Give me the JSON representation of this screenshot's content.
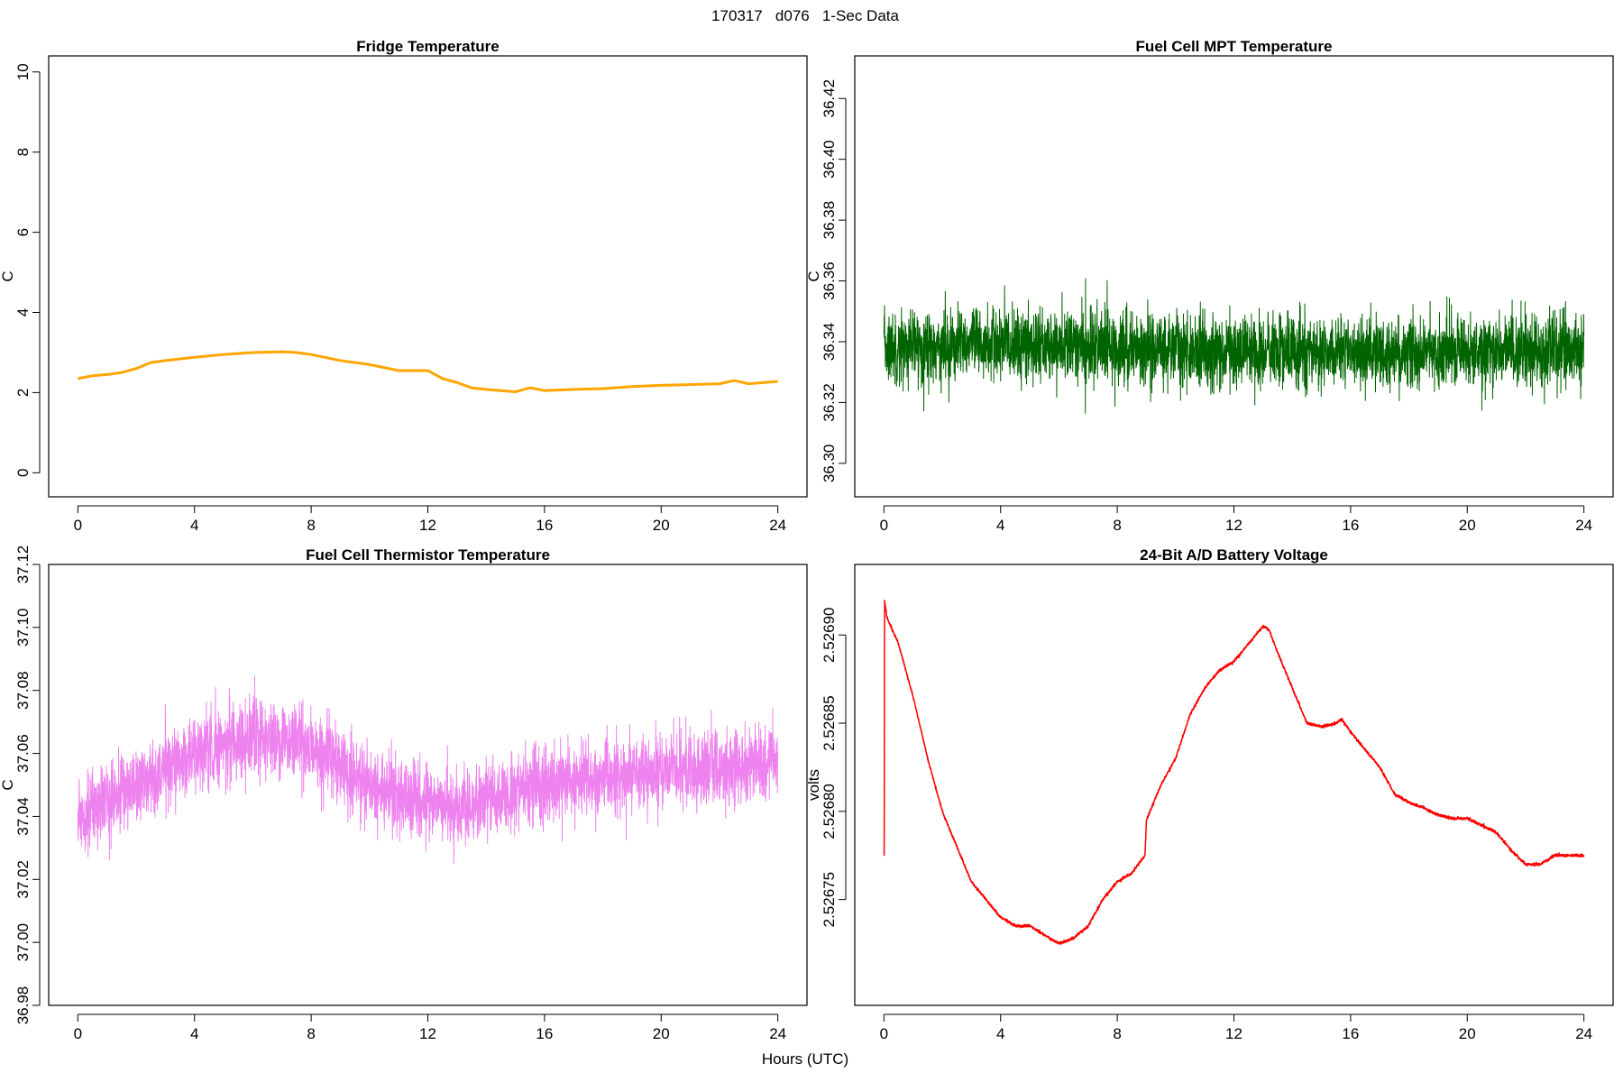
{
  "figure": {
    "title": "170317   d076   1-Sec Data",
    "xlabel": "Hours (UTC)"
  },
  "chart_data": [
    {
      "id": "fridge",
      "type": "line",
      "title": "Fridge Temperature",
      "xlabel": "Hours (UTC)",
      "ylabel": "C",
      "xlim": [
        -1.0,
        25.0
      ],
      "ylim": [
        -0.6,
        10.4
      ],
      "xticks": [
        0,
        4,
        8,
        12,
        16,
        20,
        24
      ],
      "yticks": [
        0,
        2,
        4,
        6,
        8,
        10
      ],
      "ytick_labels": [
        "0",
        "2",
        "4",
        "6",
        "8",
        "10"
      ],
      "color": "#FFA500",
      "line_width": 3,
      "noise": 0.0,
      "x": [
        0,
        0.5,
        1,
        1.5,
        2,
        2.5,
        3,
        4,
        5,
        6,
        7,
        7.5,
        8,
        9,
        10,
        11,
        12,
        12.5,
        13,
        13.5,
        14,
        15,
        15.5,
        16,
        17,
        18,
        19,
        20,
        21,
        22,
        22.5,
        23,
        24
      ],
      "values": [
        2.35,
        2.42,
        2.45,
        2.5,
        2.6,
        2.75,
        2.8,
        2.88,
        2.95,
        3.0,
        3.02,
        3.0,
        2.95,
        2.8,
        2.7,
        2.55,
        2.55,
        2.35,
        2.25,
        2.12,
        2.08,
        2.02,
        2.12,
        2.05,
        2.08,
        2.1,
        2.15,
        2.18,
        2.2,
        2.22,
        2.3,
        2.22,
        2.28
      ]
    },
    {
      "id": "mpt",
      "type": "line",
      "title": "Fuel Cell MPT Temperature",
      "xlabel": "Hours (UTC)",
      "ylabel": "C",
      "xlim": [
        -1.0,
        25.0
      ],
      "ylim": [
        36.289,
        36.434
      ],
      "xticks": [
        0,
        4,
        8,
        12,
        16,
        20,
        24
      ],
      "yticks": [
        36.3,
        36.32,
        36.34,
        36.36,
        36.38,
        36.4,
        36.42
      ],
      "ytick_labels": [
        "36.30",
        "36.32",
        "36.34",
        "36.36",
        "36.38",
        "36.40",
        "36.42"
      ],
      "color": "#006400",
      "line_width": 1,
      "noise": 0.018,
      "x": [
        0,
        4,
        8,
        12,
        16,
        20,
        24
      ],
      "values": [
        36.338,
        36.339,
        36.338,
        36.337,
        36.336,
        36.337,
        36.337
      ]
    },
    {
      "id": "thermistor",
      "type": "line",
      "title": "Fuel Cell Thermistor Temperature",
      "xlabel": "Hours (UTC)",
      "ylabel": "C",
      "xlim": [
        -1.0,
        25.0
      ],
      "ylim": [
        36.98,
        37.12
      ],
      "xticks": [
        0,
        4,
        8,
        12,
        16,
        20,
        24
      ],
      "yticks": [
        36.98,
        37.0,
        37.02,
        37.04,
        37.06,
        37.08,
        37.1,
        37.12
      ],
      "ytick_labels": [
        "36.98",
        "37.00",
        "37.02",
        "37.04",
        "37.06",
        "37.08",
        "37.10",
        "37.12"
      ],
      "color": "#EE82EE",
      "line_width": 1,
      "noise": 0.018,
      "x": [
        0,
        1,
        2,
        3,
        4,
        5,
        6,
        7,
        8,
        9,
        10,
        11,
        12,
        13,
        14,
        15,
        16,
        17,
        18,
        19,
        20,
        21,
        22,
        23,
        24
      ],
      "values": [
        37.04,
        37.045,
        37.05,
        37.055,
        37.06,
        37.063,
        37.065,
        37.064,
        37.062,
        37.055,
        37.05,
        37.047,
        37.044,
        37.042,
        37.045,
        37.048,
        37.05,
        37.051,
        37.052,
        37.053,
        37.054,
        37.055,
        37.055,
        37.056,
        37.057
      ]
    },
    {
      "id": "battery",
      "type": "line",
      "title": "24-Bit A/D Battery Voltage",
      "xlabel": "Hours (UTC)",
      "ylabel": "volts",
      "xlim": [
        -1.0,
        25.0
      ],
      "ylim": [
        2.52669,
        2.52694
      ],
      "xticks": [
        0,
        4,
        8,
        12,
        16,
        20,
        24
      ],
      "yticks": [
        2.52675,
        2.5268,
        2.52685,
        2.5269
      ],
      "ytick_labels": [
        "2.52675",
        "2.52680",
        "2.52685",
        "2.52690"
      ],
      "color": "#FF0000",
      "line_width": 1.5,
      "noise": 1.2e-06,
      "x": [
        0,
        0.01,
        0.02,
        0.1,
        0.5,
        1,
        1.5,
        2,
        2.5,
        3,
        3.5,
        4,
        4.5,
        5,
        5.5,
        6,
        6.5,
        7,
        7.5,
        8,
        8.5,
        8.95,
        9,
        9.5,
        10,
        10.5,
        11,
        11.5,
        12,
        12.5,
        13,
        13.2,
        13.5,
        14,
        14.5,
        15,
        15.5,
        15.7,
        16,
        16.5,
        17,
        17.5,
        18,
        18.5,
        19,
        19.5,
        20,
        20.5,
        21,
        21.5,
        22,
        22.5,
        23,
        23.5,
        24
      ],
      "values": [
        2.526775,
        2.526775,
        2.52692,
        2.52691,
        2.526895,
        2.526865,
        2.52683,
        2.5268,
        2.52678,
        2.52676,
        2.52675,
        2.52674,
        2.526735,
        2.526735,
        2.52673,
        2.526725,
        2.526728,
        2.526735,
        2.52675,
        2.52676,
        2.526765,
        2.526775,
        2.526795,
        2.526815,
        2.52683,
        2.526855,
        2.52687,
        2.52688,
        2.526885,
        2.526895,
        2.526905,
        2.526903,
        2.52689,
        2.52687,
        2.52685,
        2.526848,
        2.52685,
        2.526852,
        2.526845,
        2.526835,
        2.526825,
        2.52681,
        2.526805,
        2.526802,
        2.526798,
        2.526796,
        2.526796,
        2.526792,
        2.526788,
        2.526778,
        2.52677,
        2.52677,
        2.526775,
        2.526775,
        2.526775
      ]
    }
  ]
}
